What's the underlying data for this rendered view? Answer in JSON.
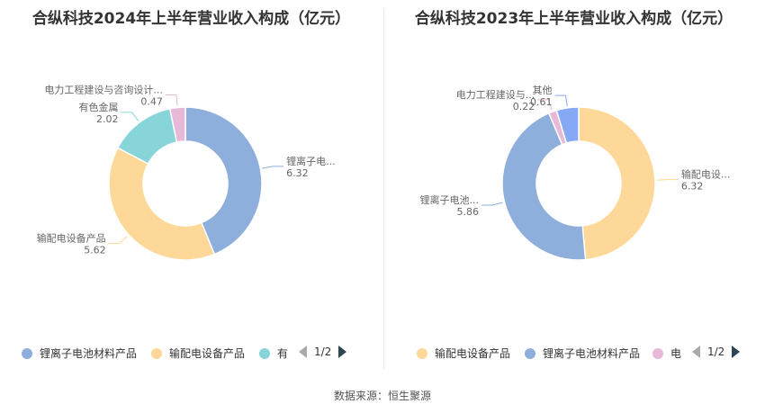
{
  "chart_data": [
    {
      "type": "pie",
      "title": "合纵科技2024年上半年营业收入构成（亿元）",
      "slices": [
        {
          "label": "锂离子电...",
          "value": 6.32,
          "value_label": "6.32",
          "color": "#8eaedb"
        },
        {
          "label": "输配电设备产品",
          "value": 5.62,
          "value_label": "5.62",
          "color": "#fdd898"
        },
        {
          "label": "有色金属",
          "value": 2.02,
          "value_label": "2.02",
          "color": "#87d5d8"
        },
        {
          "label": "电力工程建设与咨询设计...",
          "value": 0.47,
          "value_label": "0.47",
          "color": "#e8b8d8"
        }
      ],
      "legend": {
        "placement": "bottom",
        "items": [
          {
            "label": "锂离子电池材料产品",
            "color": "#8eaedb"
          },
          {
            "label": "输配电设备产品",
            "color": "#fdd898"
          },
          {
            "label": "有",
            "color": "#87d5d8"
          }
        ],
        "page": "1/2"
      }
    },
    {
      "type": "pie",
      "title": "合纵科技2023年上半年营业收入构成（亿元）",
      "slices": [
        {
          "label": "输配电设...",
          "value": 6.32,
          "value_label": "6.32",
          "color": "#fdd898"
        },
        {
          "label": "锂离子电池...",
          "value": 5.86,
          "value_label": "5.86",
          "color": "#8eaedb"
        },
        {
          "label": "电力工程建设与...",
          "value": 0.22,
          "value_label": "0.22",
          "color": "#e8b8d8"
        },
        {
          "label": "其他",
          "value": 0.61,
          "value_label": "0.61",
          "color": "#85a9f5"
        }
      ],
      "legend": {
        "placement": "bottom",
        "items": [
          {
            "label": "输配电设备产品",
            "color": "#fdd898"
          },
          {
            "label": "锂离子电池材料产品",
            "color": "#8eaedb"
          },
          {
            "label": "电",
            "color": "#e8b8d8"
          }
        ],
        "page": "1/2"
      }
    }
  ],
  "source": "数据来源：恒生聚源"
}
